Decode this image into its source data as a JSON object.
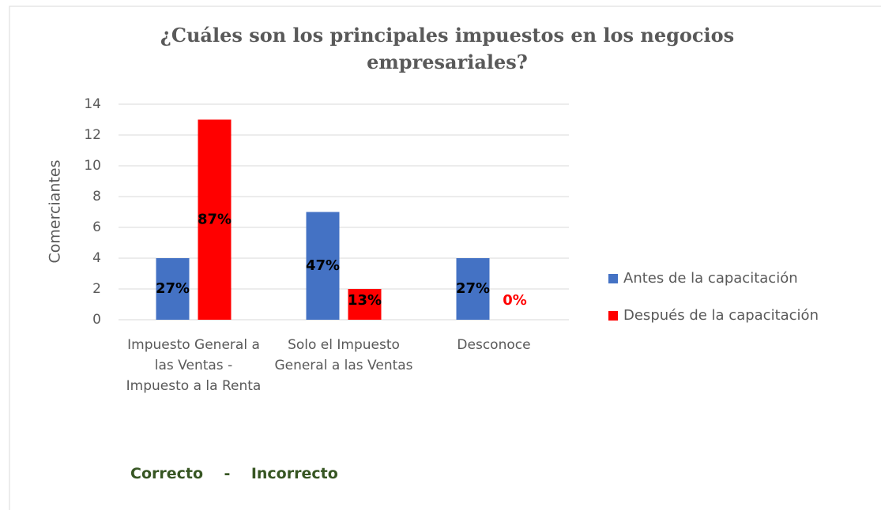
{
  "chart_data": {
    "type": "bar",
    "title": "¿Cuáles son los principales impuestos en los negocios empresariales?",
    "ylabel": "Comerciantes",
    "categories": [
      "Impuesto General a las Ventas - Impuesto a la Renta",
      "Solo el Impuesto General a las Ventas",
      "Desconoce"
    ],
    "series": [
      {
        "name": "Antes de la capacitación",
        "color": "#4472c4",
        "values": [
          4,
          7,
          4
        ],
        "value_labels": [
          "27%",
          "47%",
          "27%"
        ]
      },
      {
        "name": "Después de la capacitación",
        "color": "#ff0000",
        "values": [
          13,
          2,
          0
        ],
        "value_labels": [
          "87%",
          "13%",
          "0%"
        ]
      }
    ],
    "ylim": [
      0,
      14
    ],
    "yticks": [
      0,
      2,
      4,
      6,
      8,
      10,
      12,
      14
    ],
    "grid": true,
    "legend": "right",
    "annotation": "Correcto    -    Incorrecto"
  }
}
